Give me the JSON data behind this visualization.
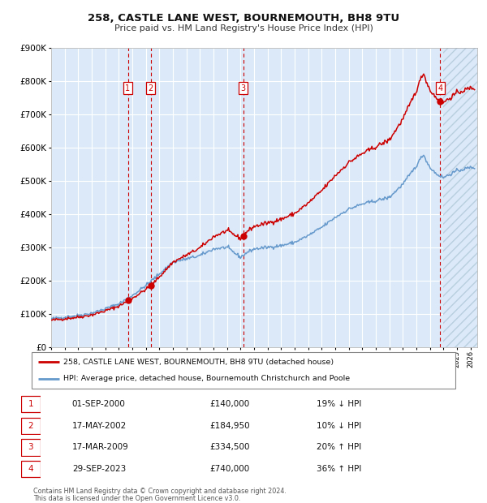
{
  "title1": "258, CASTLE LANE WEST, BOURNEMOUTH, BH8 9TU",
  "title2": "Price paid vs. HM Land Registry's House Price Index (HPI)",
  "legend_line1": "258, CASTLE LANE WEST, BOURNEMOUTH, BH8 9TU (detached house)",
  "legend_line2": "HPI: Average price, detached house, Bournemouth Christchurch and Poole",
  "transactions": [
    {
      "num": 1,
      "date": "01-SEP-2000",
      "price": 140000,
      "pct": "19%",
      "dir": "↓",
      "year_x": 2000.67
    },
    {
      "num": 2,
      "date": "17-MAY-2002",
      "price": 184950,
      "pct": "10%",
      "dir": "↓",
      "year_x": 2002.37
    },
    {
      "num": 3,
      "date": "17-MAR-2009",
      "price": 334500,
      "pct": "20%",
      "dir": "↑",
      "year_x": 2009.21
    },
    {
      "num": 4,
      "date": "29-SEP-2023",
      "price": 740000,
      "pct": "36%",
      "dir": "↑",
      "year_x": 2023.75
    }
  ],
  "footer1": "Contains HM Land Registry data © Crown copyright and database right 2024.",
  "footer2": "This data is licensed under the Open Government Licence v3.0.",
  "bg_color": "#dce9f8",
  "grid_color": "#ffffff",
  "red_color": "#cc0000",
  "blue_color": "#6699cc",
  "ylim": [
    0,
    900000
  ],
  "xlim_start": 1995.0,
  "xlim_end": 2026.5,
  "hatch_start": 2024.0
}
